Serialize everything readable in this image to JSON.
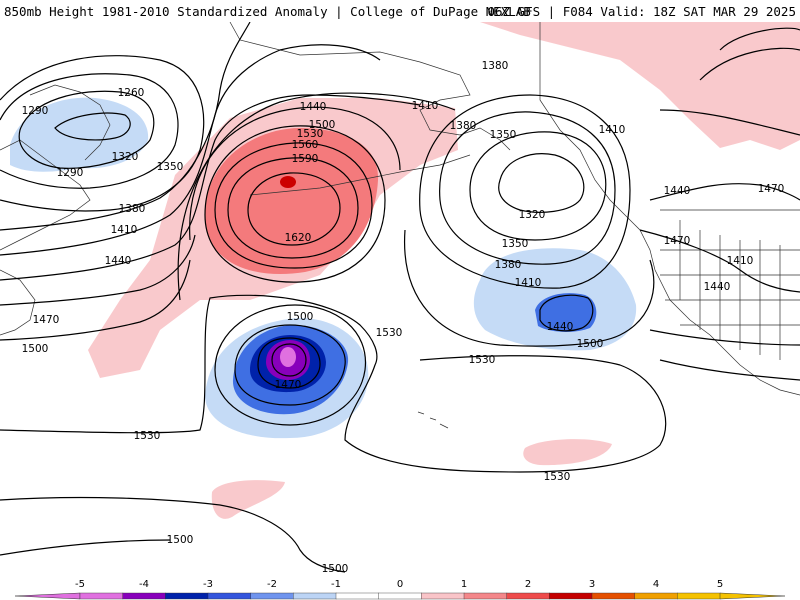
{
  "header": {
    "title": "850mb Height 1981-2010 Standardized Anomaly | College of DuPage NEXLAB",
    "run_info": "06Z GFS | F084 Valid: 18Z SAT MAR 29 2025"
  },
  "contour_labels": {
    "l1260": "1260",
    "l1290a": "1290",
    "l1290b": "1290",
    "l1320a": "1320",
    "l1350a": "1350",
    "l1380a": "1380",
    "l1410a": "1410",
    "l1440a": "1440",
    "l1470a": "1470",
    "l1500a": "1500",
    "l1530a": "1530",
    "l1440b": "1440",
    "l1500b": "1500",
    "l1530b": "1530",
    "l1560": "1560",
    "l1590": "1590",
    "l1620": "1620",
    "l1410b": "1410",
    "l1380b": "1380",
    "l1380c": "1380",
    "l1350b": "1350",
    "l1320b": "1320",
    "l1350c": "1350",
    "l1380d": "1380",
    "l1410c": "1410",
    "l1440c": "1440",
    "l1500c": "1500",
    "l1410d": "1410",
    "l1440d": "1440",
    "l1470b": "1470",
    "l1470c": "1470",
    "l1410e": "1410",
    "l1440e": "1440",
    "l1500d": "1500",
    "l1530c": "1530",
    "l1470d": "1470",
    "l1530d": "1530",
    "l1530e": "1530",
    "l1530f": "1530",
    "l1500e": "1500",
    "l1500f": "1500"
  },
  "colorbar": {
    "ticks": [
      "-5",
      "-4",
      "-3",
      "-2",
      "-1",
      "0",
      "1",
      "2",
      "3",
      "4",
      "5"
    ],
    "tick_values": [
      -5,
      -4,
      -3,
      -2,
      -1,
      0,
      1,
      2,
      3,
      4,
      5
    ],
    "colors": [
      "#e070e0",
      "#8800bb",
      "#0022aa",
      "#3355dd",
      "#6f94ee",
      "#bcd4f5",
      "#ffffff",
      "#ffffff",
      "#f9c4c8",
      "#f4878a",
      "#ee4b4b",
      "#c40000",
      "#e55000",
      "#f0a000",
      "#f5c200"
    ],
    "neg_color": "#e070e0",
    "pos_color": "#f5c200"
  },
  "colors": {
    "pos_light": "#f9c9cc",
    "pos_med": "#f47a7c",
    "pos_dark": "#cc0000",
    "neg_light": "#c5dbf6",
    "neg_med": "#3f6fe3",
    "neg_dark": "#0022aa",
    "neg_purple": "#8800bb",
    "neg_pink": "#e070e0"
  }
}
